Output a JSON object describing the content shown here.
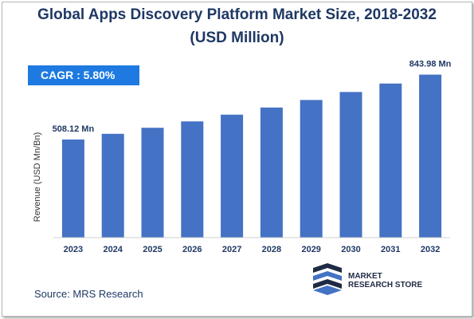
{
  "chart_data": {
    "type": "bar",
    "title": "Global Apps Discovery Platform Market Size, 2018-2032",
    "subtitle": "(USD Million)",
    "ylabel": "Revenue (USD Mn/Bn)",
    "categories": [
      "2023",
      "2024",
      "2025",
      "2026",
      "2027",
      "2028",
      "2029",
      "2030",
      "2031",
      "2032"
    ],
    "values": [
      508.12,
      537.6,
      568.8,
      601.8,
      636.7,
      673.6,
      712.7,
      754.0,
      797.8,
      843.98
    ],
    "ylim": [
      0,
      900
    ],
    "bar_color": "#4472c4",
    "grid": false,
    "annotations": [
      {
        "category": "2023",
        "text": "508.12 Mn"
      },
      {
        "category": "2032",
        "text": "843.98 Mn"
      }
    ]
  },
  "cagr_label": "CAGR : 5.80%",
  "source": "Source: MRS Research",
  "brand": {
    "line1": "MARKET",
    "line2": "RESEARCH STORE"
  },
  "colors": {
    "title": "#1f3864",
    "cagr_bg": "#1e7ae0",
    "tick_label": "#1f3864"
  }
}
